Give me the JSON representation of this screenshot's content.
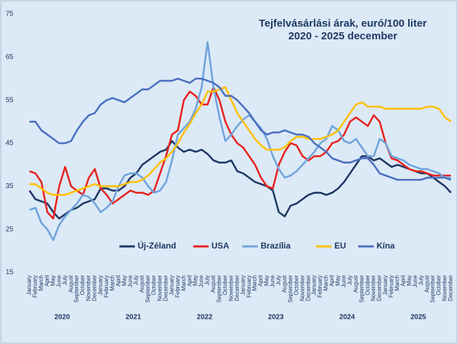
{
  "chart_data": {
    "type": "line",
    "title": "Tejfelvásárlási árak, euró/100 liter",
    "subtitle": "2020 - 2025 december",
    "categories": [
      "January",
      "February",
      "March",
      "April",
      "May",
      "June",
      "July",
      "August",
      "September",
      "October",
      "November",
      "December",
      "January",
      "February",
      "March",
      "April",
      "May",
      "June",
      "July",
      "August",
      "September",
      "October",
      "November",
      "December",
      "January",
      "February",
      "March",
      "April",
      "May",
      "June",
      "July",
      "August",
      "September",
      "October",
      "November",
      "December",
      "January",
      "February",
      "March",
      "April",
      "May",
      "June",
      "July",
      "August",
      "September",
      "October",
      "November",
      "December",
      "January",
      "February",
      "March",
      "April",
      "May",
      "June",
      "July",
      "August",
      "September",
      "October",
      "November",
      "December",
      "January",
      "February",
      "March",
      "April",
      "May",
      "June",
      "July",
      "August",
      "September",
      "October",
      "November",
      "December"
    ],
    "years": [
      "2020",
      "2021",
      "2022",
      "2023",
      "2024",
      "2025"
    ],
    "ylim": [
      15,
      75
    ],
    "yticks": [
      15,
      25,
      35,
      45,
      55,
      65,
      75
    ],
    "grid": false,
    "legend": "bottom",
    "series": [
      {
        "name": "Új-Zéland",
        "color": "#1f3864",
        "values": [
          34,
          32,
          31.5,
          31,
          29,
          27.5,
          28.5,
          29.5,
          30,
          31,
          31.5,
          32,
          34.5,
          34.5,
          34,
          34,
          35,
          37,
          38,
          40,
          41,
          42,
          43,
          43.5,
          45.5,
          44,
          43,
          43.5,
          43,
          43.5,
          42.5,
          41,
          40.5,
          40.5,
          41,
          38.5,
          38,
          37,
          36,
          35.5,
          35,
          34,
          29,
          28,
          30.5,
          31,
          32,
          33,
          33.5,
          33.5,
          33,
          33.5,
          34.5,
          36,
          38,
          40,
          42,
          42,
          41,
          41.5,
          40.5,
          39.5,
          40,
          39.5,
          39,
          38.5,
          38,
          38,
          37,
          36,
          35,
          33.5
        ]
      },
      {
        "name": "USA",
        "color": "#e8231e",
        "values": [
          38.5,
          38,
          36,
          29,
          27.5,
          35,
          39.5,
          35,
          34,
          33,
          37,
          39,
          34.5,
          33,
          31,
          32,
          33,
          34,
          33.5,
          33.5,
          33,
          34,
          38,
          42,
          47,
          48,
          55,
          57,
          56,
          54,
          54,
          58,
          55,
          50,
          47,
          45,
          44,
          42,
          40,
          37,
          35,
          34.5,
          40,
          43,
          45,
          44.5,
          42,
          41,
          42,
          42,
          43,
          45,
          45.5,
          47,
          50,
          51,
          50,
          49,
          51.5,
          50,
          45,
          41.5,
          41,
          40,
          39,
          38.5,
          38.5,
          38,
          37.5,
          37.5,
          37.5,
          37.5
        ]
      },
      {
        "name": "Brazília",
        "color": "#6fa3dc",
        "values": [
          29.5,
          30,
          26.5,
          25,
          22.5,
          26,
          28,
          29.5,
          31,
          33,
          32.5,
          31,
          29,
          30,
          31.5,
          35,
          37.5,
          38,
          38,
          37,
          35,
          33.5,
          34,
          36,
          41,
          47,
          48.5,
          50,
          53,
          58,
          68.5,
          58,
          51,
          45.5,
          47,
          49,
          50.5,
          51.5,
          50,
          48.5,
          46,
          42,
          39,
          37,
          37.5,
          38.5,
          40,
          41.5,
          43,
          45,
          46,
          49,
          48,
          45.5,
          45,
          46,
          44,
          42,
          42,
          46,
          45,
          42,
          41.5,
          41,
          40,
          39.5,
          39,
          39,
          38.5,
          38,
          37,
          37
        ]
      },
      {
        "name": "EU",
        "color": "#ffc000",
        "values": [
          35.5,
          35.5,
          34.5,
          33.5,
          33,
          33,
          33,
          33.5,
          34,
          34.5,
          35,
          35.5,
          35,
          35,
          35,
          35,
          35.5,
          36,
          36,
          36.5,
          37.5,
          39,
          40.5,
          41.5,
          43,
          45,
          47.5,
          49.5,
          52,
          54,
          57,
          57,
          57.5,
          58,
          55,
          52,
          50,
          48,
          46,
          44.5,
          43.5,
          43.5,
          43.5,
          44,
          45.5,
          46.5,
          46.5,
          46,
          46,
          46,
          46.5,
          47,
          48,
          50,
          52,
          54,
          54.5,
          53.5,
          53.5,
          53.5,
          53,
          53,
          53,
          53,
          53,
          53,
          53,
          53.5,
          53.5,
          53,
          51,
          50
        ]
      },
      {
        "name": "Kína",
        "color": "#4a6fc0",
        "values": [
          50,
          50,
          48,
          47,
          46,
          45,
          45,
          45.5,
          48,
          50,
          51.5,
          52,
          54,
          55,
          55.5,
          55,
          54.5,
          55.5,
          56.5,
          57.5,
          57.5,
          58.5,
          59.5,
          59.5,
          59.5,
          60,
          59.5,
          59,
          60,
          60,
          59.5,
          59,
          58,
          56,
          56,
          55,
          53.5,
          52,
          50,
          48,
          47,
          47.5,
          47.5,
          48,
          47.5,
          47,
          47,
          46.5,
          45,
          44,
          43,
          41.5,
          41,
          40.5,
          40.5,
          41,
          41.5,
          41.5,
          40,
          38,
          37.5,
          37,
          36.5,
          36.5,
          36.5,
          36.5,
          36.5,
          37,
          37,
          37,
          37,
          36.5
        ]
      }
    ]
  }
}
